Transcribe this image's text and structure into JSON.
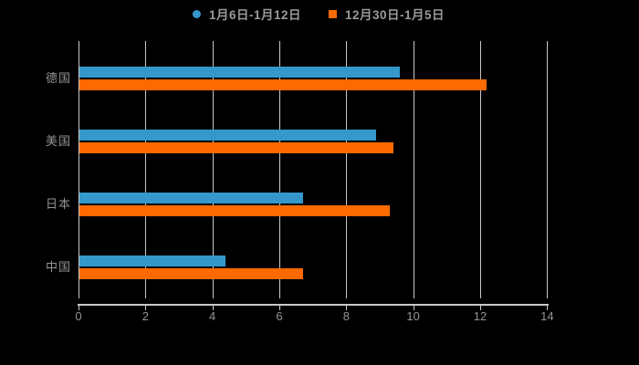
{
  "chart_data": {
    "type": "bar",
    "orientation": "horizontal",
    "title": "",
    "categories": [
      "德国",
      "美国",
      "日本",
      "中国"
    ],
    "series": [
      {
        "name": "1月6日-1月12日",
        "legend_marker": "circle",
        "color": "#3498cb",
        "values": [
          9.6,
          8.9,
          6.7,
          4.4
        ]
      },
      {
        "name": "12月30日-1月5日",
        "legend_marker": "square",
        "color": "#ff6a00",
        "values": [
          12.2,
          9.4,
          9.3,
          6.7
        ]
      }
    ],
    "xlim": [
      0,
      14
    ],
    "xticks": [
      0,
      2,
      4,
      6,
      8,
      10,
      12,
      14
    ],
    "grid": true,
    "legend_position": "top-center"
  },
  "colors": {
    "background": "#000000",
    "gridline": "#c8c8c8",
    "axis": "#c8c8c8",
    "tick_label": "#949494",
    "category_label": "#949494",
    "legend_text": "#9a9a9a"
  }
}
